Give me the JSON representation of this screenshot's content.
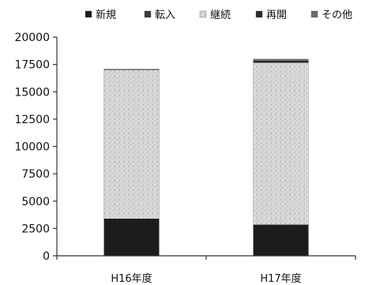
{
  "chart_data": {
    "type": "bar",
    "stacked": true,
    "categories": [
      "H16年度",
      "H17年度"
    ],
    "series": [
      {
        "name": "新規",
        "values": [
          3400,
          2850
        ],
        "color": "#1c1c1c"
      },
      {
        "name": "転入",
        "values": [
          0,
          0
        ],
        "color": "#3a3a3a"
      },
      {
        "name": "継続",
        "values": [
          13600,
          14800
        ],
        "color": "#cfcfcf"
      },
      {
        "name": "再開",
        "values": [
          50,
          200
        ],
        "color": "#2a2a2a"
      },
      {
        "name": "その他",
        "values": [
          30,
          150
        ],
        "color": "#6a6a6a"
      }
    ],
    "yticks": [
      "0",
      "2500",
      "5000",
      "7500",
      "10000",
      "12500",
      "15000",
      "17500",
      "20000"
    ],
    "ylim": [
      0,
      20000
    ],
    "legend_position": "top",
    "grid": false,
    "title": "",
    "xlabel": "",
    "ylabel": ""
  }
}
